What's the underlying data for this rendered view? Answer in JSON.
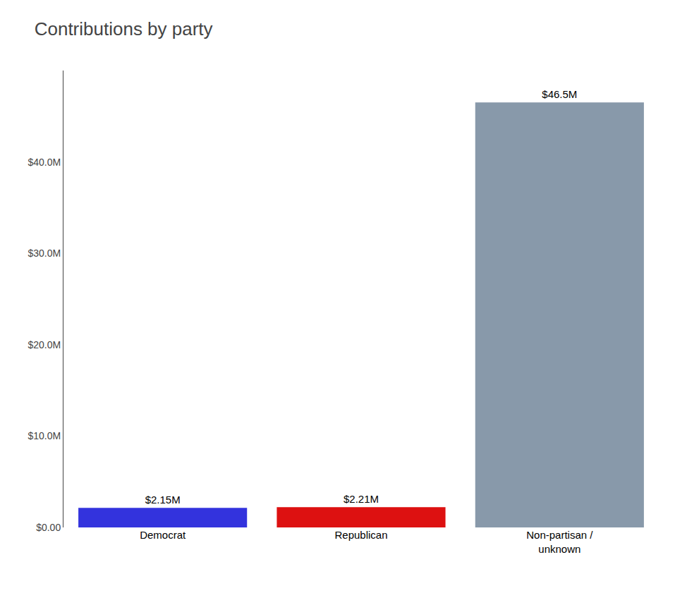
{
  "chart_data": {
    "type": "bar",
    "title": "Contributions by party",
    "categories": [
      "Democrat",
      "Republican",
      "Non-partisan /\nunknown"
    ],
    "values": [
      2150000,
      2210000,
      46500000
    ],
    "value_labels": [
      "$2.15M",
      "$2.21M",
      "$46.5M"
    ],
    "colors": [
      "#3333dd",
      "#dd1111",
      "#8899aa"
    ],
    "ylim": [
      0,
      50000000
    ],
    "yticks": [
      {
        "value": 0,
        "label": "$0.00"
      },
      {
        "value": 10000000,
        "label": "$10.0M"
      },
      {
        "value": 20000000,
        "label": "$20.0M"
      },
      {
        "value": 30000000,
        "label": "$30.0M"
      },
      {
        "value": 40000000,
        "label": "$40.0M"
      }
    ],
    "data_labels": true,
    "grid": false
  }
}
